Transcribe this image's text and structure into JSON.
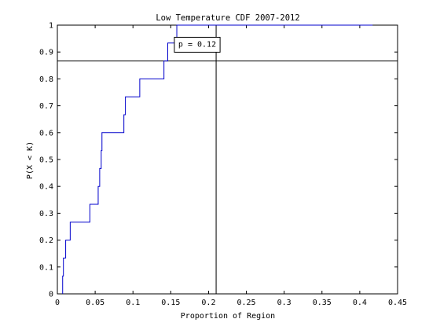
{
  "chart_data": {
    "type": "line",
    "title": "Low Temperature CDF 2007-2012",
    "xlabel": "Proportion of Region",
    "ylabel": "P(X < K)",
    "xlim": [
      0,
      0.45
    ],
    "ylim": [
      0,
      1
    ],
    "xticks": [
      0,
      0.05,
      0.1,
      0.15,
      0.2,
      0.25,
      0.3,
      0.35,
      0.4,
      0.45
    ],
    "xtick_labels": [
      "0",
      "0.05",
      "0.1",
      "0.15",
      "0.2",
      "0.25",
      "0.3",
      "0.35",
      "0.4",
      "0.45"
    ],
    "yticks": [
      0,
      0.1,
      0.2,
      0.3,
      0.4,
      0.5,
      0.6,
      0.7,
      0.8,
      0.9,
      1
    ],
    "ytick_labels": [
      "0",
      "0.1",
      "0.2",
      "0.3",
      "0.4",
      "0.5",
      "0.6",
      "0.7",
      "0.8",
      "0.9",
      "1"
    ],
    "grid": false,
    "series": [
      {
        "color": "#0000cc",
        "style": "stairs",
        "x": [
          0.007,
          0.008,
          0.011,
          0.017,
          0.043,
          0.054,
          0.056,
          0.058,
          0.059,
          0.088,
          0.09,
          0.109,
          0.141,
          0.146,
          0.158,
          0.269,
          0.417
        ],
        "y": [
          0.0667,
          0.1333,
          0.2,
          0.2667,
          0.3333,
          0.4,
          0.4667,
          0.5333,
          0.6,
          0.6667,
          0.7333,
          0.8,
          0.8667,
          0.9333,
          1.0,
          1.0,
          1.0
        ]
      }
    ],
    "reference_lines": [
      {
        "orientation": "horizontal",
        "value": 0.8667,
        "color": "#000000"
      },
      {
        "orientation": "vertical",
        "value": 0.21,
        "color": "#000000"
      }
    ],
    "annotation": {
      "text": "p = 0.12",
      "x": 0.185,
      "y": 0.93
    }
  }
}
